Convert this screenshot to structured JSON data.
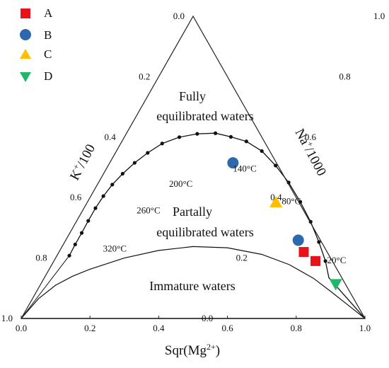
{
  "chart_data": {
    "type": "scatter",
    "subtype": "ternary-giggenbach",
    "axes": {
      "bottom": {
        "label_base": "Sqr(Mg",
        "label_sup": "2+",
        "label_end": ")",
        "ticks": [
          "0.0",
          "0.2",
          "0.4",
          "0.6",
          "0.8",
          "1.0"
        ]
      },
      "left": {
        "label_base": "K",
        "label_sup": "+",
        "label_end": "/100",
        "ticks": [
          "0.0",
          "0.2",
          "0.4",
          "0.6",
          "0.8",
          "1.0"
        ]
      },
      "right": {
        "label_base": "Na",
        "label_sup": "+",
        "label_end": "/1000",
        "ticks": [
          "0.0",
          "0.2",
          "0.4",
          "0.6",
          "0.8",
          "1.0"
        ]
      }
    },
    "regions": {
      "fully": [
        "Fully",
        "equilibrated waters"
      ],
      "partial": [
        "Partally",
        "equilibrated waters"
      ],
      "immature": "Immature waters"
    },
    "temperature_labels": [
      {
        "text": "320°C",
        "x": 0.238,
        "y": 0.221
      },
      {
        "text": "260°C",
        "x": 0.336,
        "y": 0.348
      },
      {
        "text": "200°C",
        "x": 0.43,
        "y": 0.436
      },
      {
        "text": "140°C",
        "x": 0.616,
        "y": 0.486
      },
      {
        "text": "80°C",
        "x": 0.758,
        "y": 0.378
      },
      {
        "text": "20°C",
        "x": 0.89,
        "y": 0.183
      }
    ],
    "full_equilibrium_curve": [
      [
        0.14,
        0.208
      ],
      [
        0.157,
        0.245
      ],
      [
        0.176,
        0.283
      ],
      [
        0.195,
        0.323
      ],
      [
        0.216,
        0.365
      ],
      [
        0.239,
        0.405
      ],
      [
        0.265,
        0.443
      ],
      [
        0.295,
        0.479
      ],
      [
        0.33,
        0.515
      ],
      [
        0.368,
        0.548
      ],
      [
        0.41,
        0.579
      ],
      [
        0.46,
        0.6
      ],
      [
        0.512,
        0.611
      ],
      [
        0.565,
        0.613
      ],
      [
        0.61,
        0.601
      ],
      [
        0.655,
        0.586
      ],
      [
        0.7,
        0.554
      ],
      [
        0.74,
        0.506
      ],
      [
        0.778,
        0.45
      ],
      [
        0.812,
        0.386
      ],
      [
        0.842,
        0.32
      ],
      [
        0.866,
        0.253
      ],
      [
        0.885,
        0.19
      ],
      [
        0.895,
        0.135
      ]
    ],
    "curve_markers": [
      [
        0.14,
        0.208
      ],
      [
        0.157,
        0.245
      ],
      [
        0.176,
        0.283
      ],
      [
        0.195,
        0.323
      ],
      [
        0.216,
        0.365
      ],
      [
        0.239,
        0.405
      ],
      [
        0.265,
        0.443
      ],
      [
        0.295,
        0.479
      ],
      [
        0.33,
        0.515
      ],
      [
        0.368,
        0.548
      ],
      [
        0.41,
        0.579
      ],
      [
        0.46,
        0.6
      ],
      [
        0.512,
        0.611
      ],
      [
        0.565,
        0.613
      ],
      [
        0.61,
        0.601
      ],
      [
        0.655,
        0.586
      ],
      [
        0.7,
        0.554
      ],
      [
        0.74,
        0.506
      ],
      [
        0.778,
        0.45
      ],
      [
        0.812,
        0.386
      ],
      [
        0.842,
        0.32
      ],
      [
        0.866,
        0.253
      ],
      [
        0.885,
        0.19
      ]
    ],
    "partial_equilibrium_curve": [
      [
        0.0,
        0.0
      ],
      [
        0.05,
        0.065
      ],
      [
        0.1,
        0.11
      ],
      [
        0.15,
        0.14
      ],
      [
        0.2,
        0.163
      ],
      [
        0.3,
        0.2
      ],
      [
        0.4,
        0.225
      ],
      [
        0.5,
        0.238
      ],
      [
        0.6,
        0.234
      ],
      [
        0.7,
        0.212
      ],
      [
        0.78,
        0.178
      ],
      [
        0.85,
        0.133
      ],
      [
        0.9,
        0.09
      ],
      [
        0.95,
        0.045
      ],
      [
        1.0,
        0.0
      ]
    ],
    "series": [
      {
        "name": "A",
        "color": "#e8131a",
        "marker": "square",
        "points": [
          {
            "x": 0.822,
            "y": 0.22
          },
          {
            "x": 0.856,
            "y": 0.19
          }
        ]
      },
      {
        "name": "B",
        "color": "#2e67ae",
        "marker": "circle",
        "points": [
          {
            "x": 0.616,
            "y": 0.515
          },
          {
            "x": 0.806,
            "y": 0.259
          }
        ]
      },
      {
        "name": "C",
        "color": "#ffbf00",
        "marker": "triangle-up",
        "points": [
          {
            "x": 0.741,
            "y": 0.384
          }
        ]
      },
      {
        "name": "D",
        "color": "#21b76a",
        "marker": "triangle-down",
        "points": [
          {
            "x": 0.915,
            "y": 0.114
          }
        ]
      }
    ],
    "legend": {
      "position": "top-left"
    }
  }
}
